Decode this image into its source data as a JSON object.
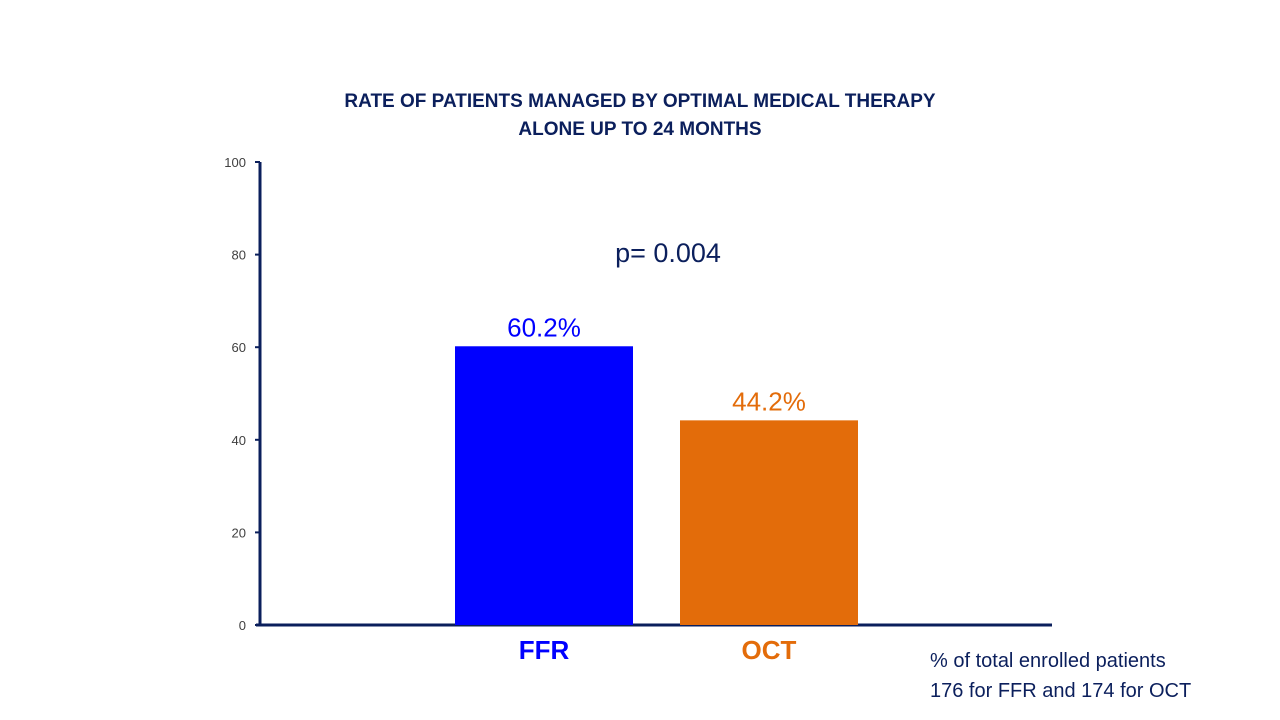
{
  "chart_data": {
    "type": "bar",
    "title_lines": [
      "RATE OF PATIENTS MANAGED BY OPTIMAL MEDICAL THERAPY",
      "ALONE UP TO 24 MONTHS"
    ],
    "categories": [
      "FFR",
      "OCT"
    ],
    "values": [
      60.2,
      44.2
    ],
    "value_labels": [
      "60.2%",
      "44.2%"
    ],
    "colors": [
      "#0000ff",
      "#e36c0a"
    ],
    "ylim": [
      0,
      100
    ],
    "yticks": [
      0,
      20,
      40,
      60,
      80,
      100
    ],
    "annotation": "p= 0.004",
    "xlabel": "",
    "ylabel": "",
    "grid": false,
    "legend": "none"
  },
  "footnote": {
    "line1": "%  of total enrolled patients",
    "line2": "176 for FFR and 174 for OCT"
  },
  "axis_color": "#0b1f5c",
  "text_color": "#0b1f5c",
  "tick_color": "#404040"
}
